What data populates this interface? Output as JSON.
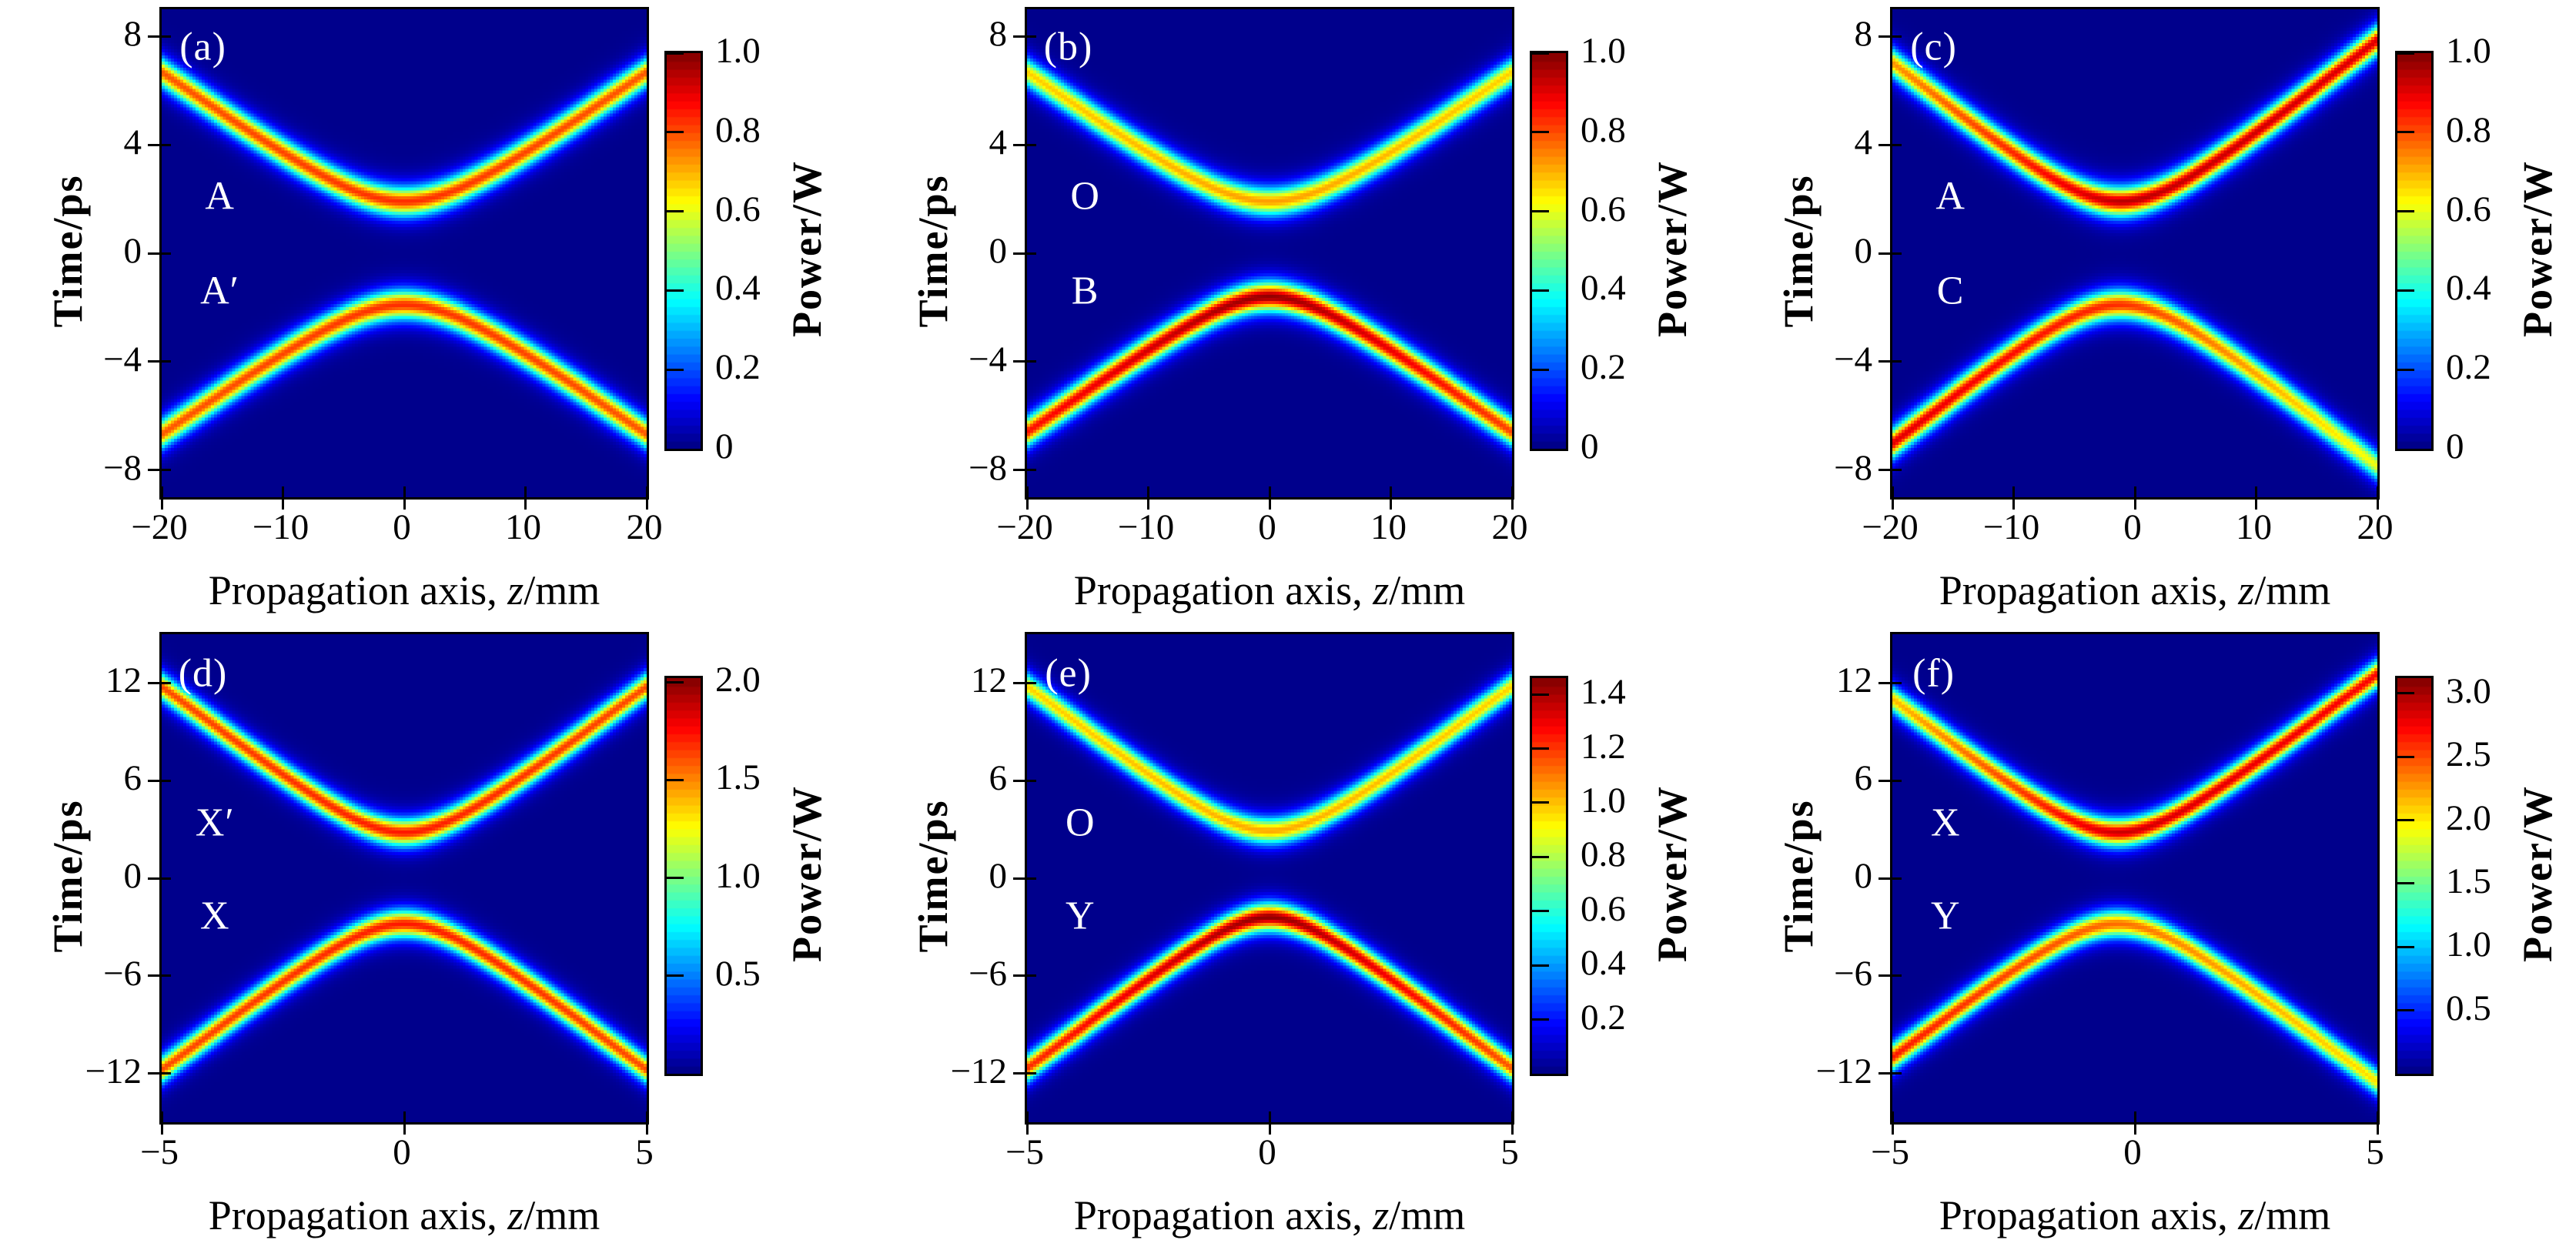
{
  "figure": {
    "ylabel": "Time/ps",
    "xlabel": {
      "pre": "Propagation axis, ",
      "var": "z",
      "post": "/mm"
    },
    "colorbar_label": "Power/W",
    "colormap": "jet",
    "background_color": "#00008b",
    "axis_color": "#000000",
    "annotation_color": "#ffffff"
  },
  "chart_data": [
    {
      "type": "heatmap",
      "panel_tag": "(a)",
      "x": {
        "min": -20,
        "max": 20,
        "ticks": [
          {
            "v": -20,
            "label": "−20"
          },
          {
            "v": -10,
            "label": "−10"
          },
          {
            "v": 0,
            "label": "0"
          },
          {
            "v": 10,
            "label": "10"
          },
          {
            "v": 20,
            "label": "20"
          }
        ]
      },
      "y": {
        "min": -9,
        "max": 9,
        "ticks": [
          {
            "v": 8,
            "label": "8"
          },
          {
            "v": 4,
            "label": "4"
          },
          {
            "v": 0,
            "label": "0"
          },
          {
            "v": -4,
            "label": "−4"
          },
          {
            "v": -8,
            "label": "−8"
          }
        ]
      },
      "colorbar": {
        "vmin": 0,
        "vmax": 1.0,
        "ticks": [
          {
            "v": 0,
            "label": "0"
          },
          {
            "v": 0.2,
            "label": "0.2"
          },
          {
            "v": 0.4,
            "label": "0.4"
          },
          {
            "v": 0.6,
            "label": "0.6"
          },
          {
            "v": 0.8,
            "label": "0.8"
          },
          {
            "v": 1.0,
            "label": "1.0"
          }
        ]
      },
      "solitons": [
        {
          "name": "A",
          "branch": "upper",
          "vertex_time_ps": 1.9,
          "slope_ps_per_mm": 0.32,
          "vertex_z_mm": 0,
          "half_width_ps": 0.5,
          "peak_power_W": {
            "left": 0.78,
            "vertex": 0.82,
            "right": 0.78
          }
        },
        {
          "name": "A′",
          "branch": "lower",
          "vertex_time_ps": 1.9,
          "slope_ps_per_mm": 0.32,
          "vertex_z_mm": 0,
          "half_width_ps": 0.5,
          "peak_power_W": {
            "left": 0.78,
            "vertex": 0.82,
            "right": 0.78
          }
        }
      ],
      "annotations": [
        {
          "text": "(a)",
          "z": -16.6,
          "t": 7.6
        },
        {
          "text": "A",
          "z": -15.2,
          "t": 2.1
        },
        {
          "text": "A′",
          "z": -15.2,
          "t": -1.4
        }
      ]
    },
    {
      "type": "heatmap",
      "panel_tag": "(b)",
      "x": {
        "min": -20,
        "max": 20,
        "ticks": [
          {
            "v": -20,
            "label": "−20"
          },
          {
            "v": -10,
            "label": "−10"
          },
          {
            "v": 0,
            "label": "0"
          },
          {
            "v": 10,
            "label": "10"
          },
          {
            "v": 20,
            "label": "20"
          }
        ]
      },
      "y": {
        "min": -9,
        "max": 9,
        "ticks": [
          {
            "v": 8,
            "label": "8"
          },
          {
            "v": 4,
            "label": "4"
          },
          {
            "v": 0,
            "label": "0"
          },
          {
            "v": -4,
            "label": "−4"
          },
          {
            "v": -8,
            "label": "−8"
          }
        ]
      },
      "colorbar": {
        "vmin": 0,
        "vmax": 1.0,
        "ticks": [
          {
            "v": 0,
            "label": "0"
          },
          {
            "v": 0.2,
            "label": "0.2"
          },
          {
            "v": 0.4,
            "label": "0.4"
          },
          {
            "v": 0.6,
            "label": "0.6"
          },
          {
            "v": 0.8,
            "label": "0.8"
          },
          {
            "v": 1.0,
            "label": "1.0"
          }
        ]
      },
      "solitons": [
        {
          "name": "O",
          "branch": "upper",
          "vertex_time_ps": 1.9,
          "slope_ps_per_mm": 0.32,
          "vertex_z_mm": 0,
          "half_width_ps": 0.5,
          "peak_power_W": {
            "left": 0.66,
            "vertex": 0.71,
            "right": 0.66
          }
        },
        {
          "name": "B",
          "branch": "lower",
          "vertex_time_ps": 1.6,
          "slope_ps_per_mm": 0.32,
          "vertex_z_mm": 0,
          "half_width_ps": 0.5,
          "peak_power_W": {
            "left": 0.85,
            "vertex": 0.97,
            "right": 0.8
          }
        }
      ],
      "annotations": [
        {
          "text": "(b)",
          "z": -16.6,
          "t": 7.6
        },
        {
          "text": "O",
          "z": -15.2,
          "t": 2.1
        },
        {
          "text": "B",
          "z": -15.2,
          "t": -1.4
        }
      ]
    },
    {
      "type": "heatmap",
      "panel_tag": "(c)",
      "x": {
        "min": -20,
        "max": 20,
        "ticks": [
          {
            "v": -20,
            "label": "−20"
          },
          {
            "v": -10,
            "label": "−10"
          },
          {
            "v": 0,
            "label": "0"
          },
          {
            "v": 10,
            "label": "10"
          },
          {
            "v": 20,
            "label": "20"
          }
        ]
      },
      "y": {
        "min": -9,
        "max": 9,
        "ticks": [
          {
            "v": 8,
            "label": "8"
          },
          {
            "v": 4,
            "label": "4"
          },
          {
            "v": 0,
            "label": "0"
          },
          {
            "v": -4,
            "label": "−4"
          },
          {
            "v": -8,
            "label": "−8"
          }
        ]
      },
      "colorbar": {
        "vmin": 0,
        "vmax": 1.0,
        "ticks": [
          {
            "v": 0,
            "label": "0"
          },
          {
            "v": 0.2,
            "label": "0.2"
          },
          {
            "v": 0.4,
            "label": "0.4"
          },
          {
            "v": 0.6,
            "label": "0.6"
          },
          {
            "v": 0.8,
            "label": "0.8"
          },
          {
            "v": 1.0,
            "label": "1.0"
          }
        ]
      },
      "solitons": [
        {
          "name": "A",
          "branch": "upper",
          "vertex_time_ps": 1.9,
          "slope_ps_per_mm": 0.36,
          "vertex_z_mm": -1.2,
          "half_width_ps": 0.5,
          "peak_power_W": {
            "left": 0.72,
            "vertex": 0.93,
            "right": 0.9
          }
        },
        {
          "name": "C",
          "branch": "lower",
          "vertex_time_ps": 1.9,
          "slope_ps_per_mm": 0.36,
          "vertex_z_mm": -1.2,
          "half_width_ps": 0.5,
          "peak_power_W": {
            "left": 0.9,
            "vertex": 0.82,
            "right": 0.6
          }
        }
      ],
      "annotations": [
        {
          "text": "(c)",
          "z": -16.6,
          "t": 7.6
        },
        {
          "text": "A",
          "z": -15.2,
          "t": 2.1
        },
        {
          "text": "C",
          "z": -15.2,
          "t": -1.4
        }
      ]
    },
    {
      "type": "heatmap",
      "panel_tag": "(d)",
      "x": {
        "min": -5,
        "max": 5,
        "ticks": [
          {
            "v": -5,
            "label": "−5"
          },
          {
            "v": 0,
            "label": "0"
          },
          {
            "v": 5,
            "label": "5"
          }
        ]
      },
      "y": {
        "min": -15,
        "max": 15,
        "ticks": [
          {
            "v": 12,
            "label": "12"
          },
          {
            "v": 6,
            "label": "6"
          },
          {
            "v": 0,
            "label": "0"
          },
          {
            "v": -6,
            "label": "−6"
          },
          {
            "v": -12,
            "label": "−12"
          }
        ]
      },
      "colorbar": {
        "vmin": 0,
        "vmax": 2.02,
        "ticks": [
          {
            "v": 0.5,
            "label": "0.5"
          },
          {
            "v": 1.0,
            "label": "1.0"
          },
          {
            "v": 1.5,
            "label": "1.5"
          },
          {
            "v": 2.0,
            "label": "2.0"
          }
        ]
      },
      "solitons": [
        {
          "name": "X′",
          "branch": "upper",
          "vertex_time_ps": 2.8,
          "slope_ps_per_mm": 2.29,
          "vertex_z_mm": 0,
          "half_width_ps": 0.78,
          "peak_power_W": {
            "left": 1.6,
            "vertex": 1.7,
            "right": 1.6
          }
        },
        {
          "name": "X",
          "branch": "lower",
          "vertex_time_ps": 2.8,
          "slope_ps_per_mm": 2.29,
          "vertex_z_mm": 0,
          "half_width_ps": 0.78,
          "peak_power_W": {
            "left": 1.6,
            "vertex": 1.7,
            "right": 1.6
          }
        }
      ],
      "annotations": [
        {
          "text": "(d)",
          "z": -4.15,
          "t": 12.6
        },
        {
          "text": "X′",
          "z": -3.9,
          "t": 3.4
        },
        {
          "text": "X",
          "z": -3.9,
          "t": -2.3
        }
      ]
    },
    {
      "type": "heatmap",
      "panel_tag": "(e)",
      "x": {
        "min": -5,
        "max": 5,
        "ticks": [
          {
            "v": -5,
            "label": "−5"
          },
          {
            "v": 0,
            "label": "0"
          },
          {
            "v": 5,
            "label": "5"
          }
        ]
      },
      "y": {
        "min": -15,
        "max": 15,
        "ticks": [
          {
            "v": 12,
            "label": "12"
          },
          {
            "v": 6,
            "label": "6"
          },
          {
            "v": 0,
            "label": "0"
          },
          {
            "v": -6,
            "label": "−6"
          },
          {
            "v": -12,
            "label": "−12"
          }
        ]
      },
      "colorbar": {
        "vmin": 0,
        "vmax": 1.46,
        "ticks": [
          {
            "v": 0.2,
            "label": "0.2"
          },
          {
            "v": 0.4,
            "label": "0.4"
          },
          {
            "v": 0.6,
            "label": "0.6"
          },
          {
            "v": 0.8,
            "label": "0.8"
          },
          {
            "v": 1.0,
            "label": "1.0"
          },
          {
            "v": 1.2,
            "label": "1.2"
          },
          {
            "v": 1.4,
            "label": "1.4"
          }
        ]
      },
      "solitons": [
        {
          "name": "O",
          "branch": "upper",
          "vertex_time_ps": 2.9,
          "slope_ps_per_mm": 2.29,
          "vertex_z_mm": 0,
          "half_width_ps": 0.78,
          "peak_power_W": {
            "left": 0.96,
            "vertex": 1.02,
            "right": 0.96
          }
        },
        {
          "name": "Y",
          "branch": "lower",
          "vertex_time_ps": 2.4,
          "slope_ps_per_mm": 2.29,
          "vertex_z_mm": 0,
          "half_width_ps": 0.78,
          "peak_power_W": {
            "left": 1.2,
            "vertex": 1.42,
            "right": 1.14
          }
        }
      ],
      "annotations": [
        {
          "text": "(e)",
          "z": -4.15,
          "t": 12.6
        },
        {
          "text": "O",
          "z": -3.9,
          "t": 3.4
        },
        {
          "text": "Y",
          "z": -3.9,
          "t": -2.3
        }
      ]
    },
    {
      "type": "heatmap",
      "panel_tag": "(f)",
      "x": {
        "min": -5,
        "max": 5,
        "ticks": [
          {
            "v": -5,
            "label": "−5"
          },
          {
            "v": 0,
            "label": "0"
          },
          {
            "v": 5,
            "label": "5"
          }
        ]
      },
      "y": {
        "min": -15,
        "max": 15,
        "ticks": [
          {
            "v": 12,
            "label": "12"
          },
          {
            "v": 6,
            "label": "6"
          },
          {
            "v": 0,
            "label": "0"
          },
          {
            "v": -6,
            "label": "−6"
          },
          {
            "v": -12,
            "label": "−12"
          }
        ]
      },
      "colorbar": {
        "vmin": 0,
        "vmax": 3.12,
        "ticks": [
          {
            "v": 0.5,
            "label": "0.5"
          },
          {
            "v": 1.0,
            "label": "1.0"
          },
          {
            "v": 1.5,
            "label": "1.5"
          },
          {
            "v": 2.0,
            "label": "2.0"
          },
          {
            "v": 2.5,
            "label": "2.5"
          },
          {
            "v": 3.0,
            "label": "3.0"
          }
        ]
      },
      "solitons": [
        {
          "name": "X",
          "branch": "upper",
          "vertex_time_ps": 2.8,
          "slope_ps_per_mm": 2.29,
          "vertex_z_mm": -0.35,
          "half_width_ps": 0.78,
          "peak_power_W": {
            "left": 2.12,
            "vertex": 2.85,
            "right": 2.7
          }
        },
        {
          "name": "Y",
          "branch": "lower",
          "vertex_time_ps": 2.8,
          "slope_ps_per_mm": 2.29,
          "vertex_z_mm": -0.35,
          "half_width_ps": 0.78,
          "peak_power_W": {
            "left": 2.64,
            "vertex": 2.36,
            "right": 2.0
          }
        }
      ],
      "annotations": [
        {
          "text": "(f)",
          "z": -4.15,
          "t": 12.6
        },
        {
          "text": "X",
          "z": -3.9,
          "t": 3.4
        },
        {
          "text": "Y",
          "z": -3.9,
          "t": -2.3
        }
      ]
    }
  ]
}
